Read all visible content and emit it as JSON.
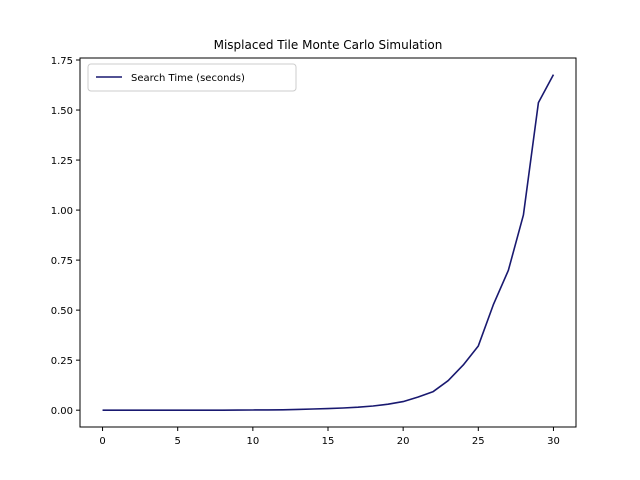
{
  "chart_data": {
    "type": "line",
    "title": "Misplaced Tile Monte Carlo Simulation",
    "xlabel": "",
    "ylabel": "",
    "xlim": [
      -1.5,
      31.5
    ],
    "ylim": [
      -0.084,
      1.76
    ],
    "xticks": [
      0,
      5,
      10,
      15,
      20,
      25,
      30
    ],
    "yticks": [
      0.0,
      0.25,
      0.5,
      0.75,
      1.0,
      1.25,
      1.5,
      1.75
    ],
    "ytick_labels": [
      "0.00",
      "0.25",
      "0.50",
      "0.75",
      "1.00",
      "1.25",
      "1.50",
      "1.75"
    ],
    "grid": false,
    "legend_position": "top-left",
    "series": [
      {
        "name": "Search Time (seconds)",
        "color": "#191970",
        "x": [
          0,
          1,
          2,
          3,
          4,
          5,
          6,
          7,
          8,
          9,
          10,
          11,
          12,
          13,
          14,
          15,
          16,
          17,
          18,
          19,
          20,
          21,
          22,
          23,
          24,
          25,
          26,
          27,
          28,
          29,
          30
        ],
        "y": [
          0,
          0,
          0,
          0,
          0,
          0,
          0,
          0,
          0,
          0.0005,
          0.001,
          0.0015,
          0.002,
          0.004,
          0.006,
          0.008,
          0.011,
          0.015,
          0.021,
          0.03,
          0.043,
          0.066,
          0.093,
          0.148,
          0.226,
          0.321,
          0.527,
          0.699,
          0.975,
          1.537,
          1.677
        ]
      }
    ]
  }
}
